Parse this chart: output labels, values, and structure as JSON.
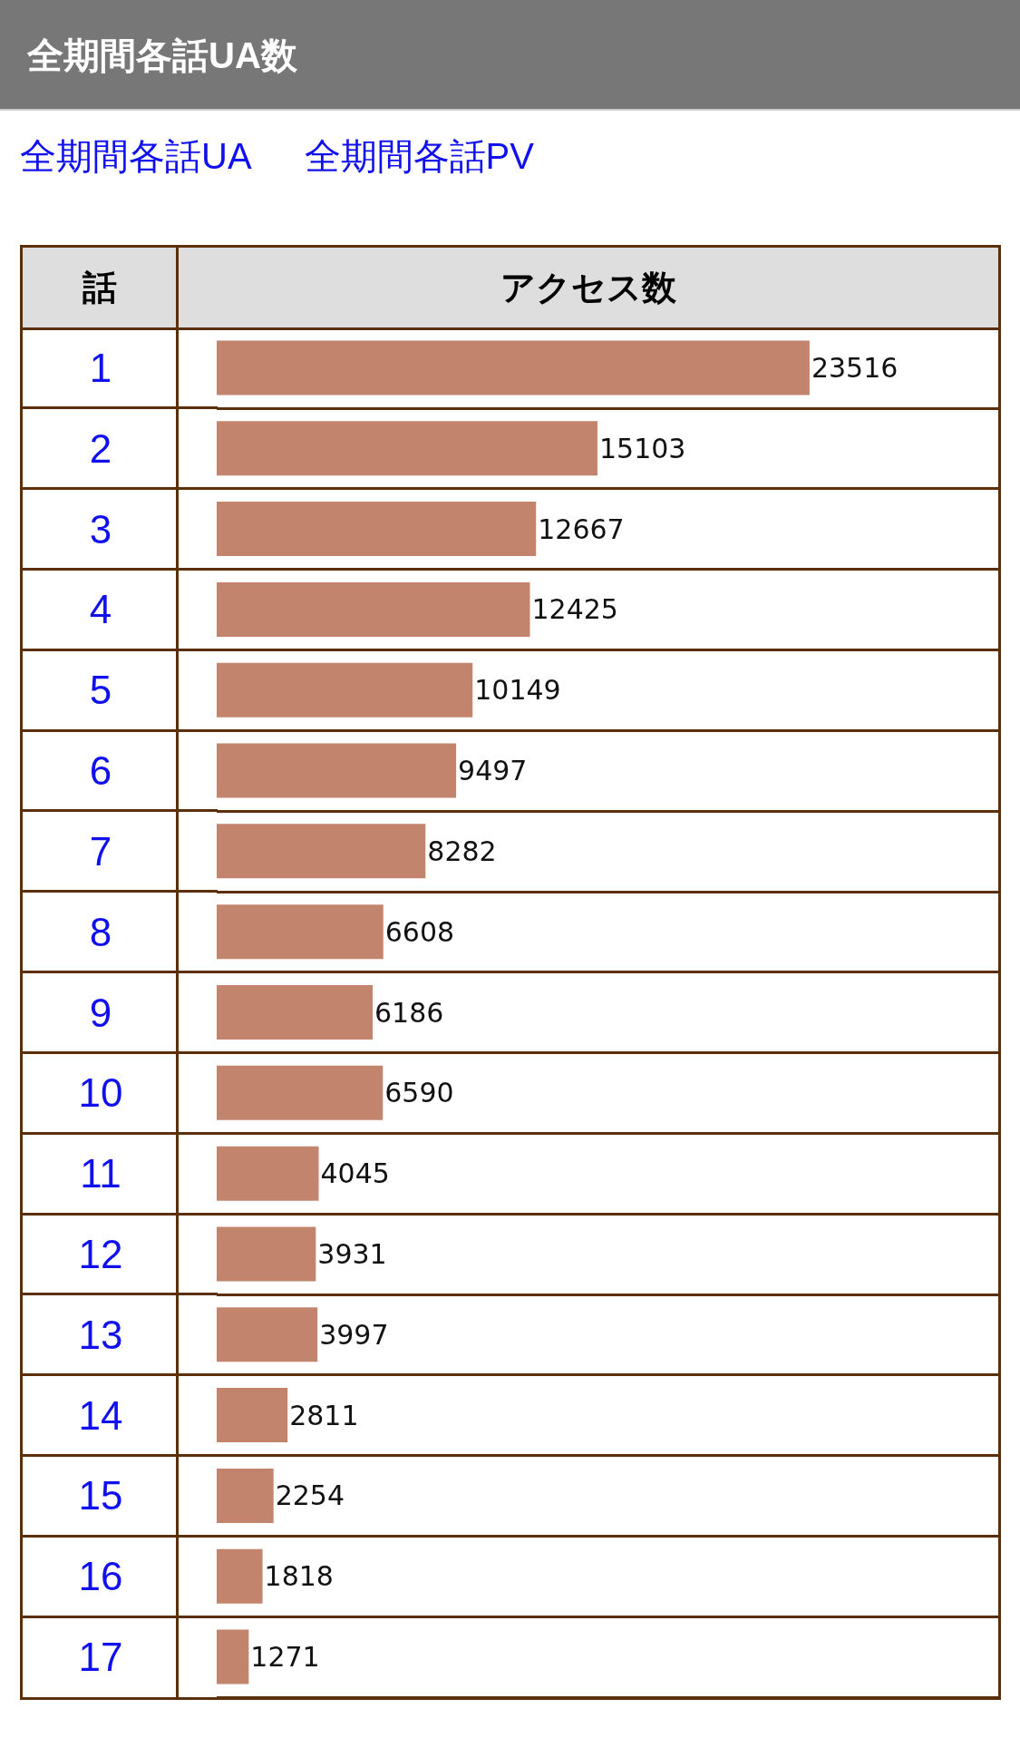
{
  "chart_data": {
    "type": "bar",
    "orientation": "horizontal",
    "title": "全期間各話UA数",
    "annotations": [
      "全期間各話UA",
      "全期間各話PV"
    ],
    "ylabel": "話",
    "xlabel": "アクセス数",
    "categories": [
      "1",
      "2",
      "3",
      "4",
      "5",
      "6",
      "7",
      "8",
      "9",
      "10",
      "11",
      "12",
      "13",
      "14",
      "15",
      "16",
      "17"
    ],
    "values": [
      23516,
      15103,
      12667,
      12425,
      10149,
      9497,
      8282,
      6608,
      6186,
      6590,
      4045,
      3931,
      3997,
      2811,
      2254,
      1818,
      1271
    ],
    "color": "#c2846c",
    "data_labels": true,
    "xlim": [
      0,
      31000
    ],
    "tick_labels": "y",
    "grid": "y"
  }
}
